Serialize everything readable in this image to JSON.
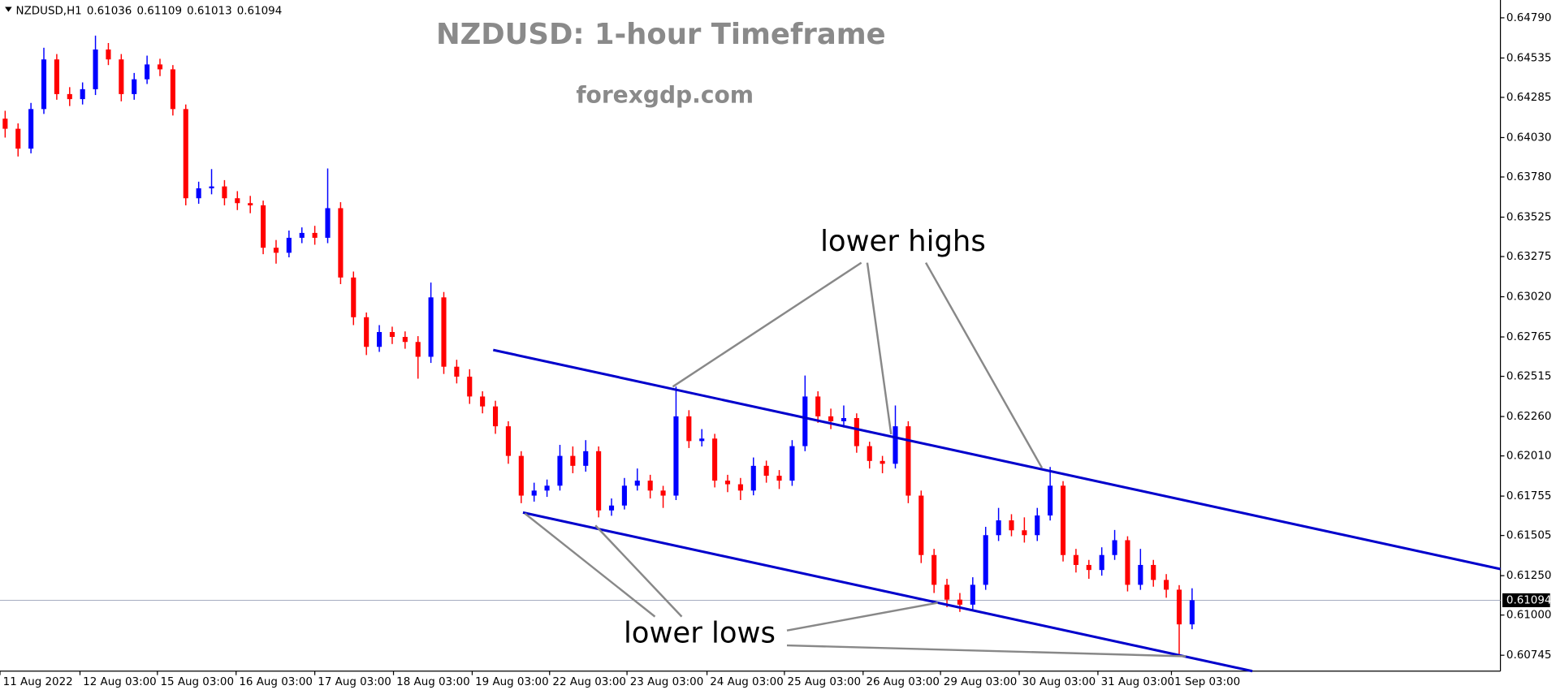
{
  "chart_data": {
    "type": "candlestick",
    "title": "NZDUSD: 1-hour Timeframe",
    "subtitle": "forexgdp.com",
    "header_symbol": "NZDUSD,H1",
    "header_values": [
      0.61036,
      0.61109,
      0.61013,
      0.61094
    ],
    "annotations": [
      "lower highs",
      "lower lows"
    ],
    "current_price": 0.61094,
    "up_color": "#0000ff",
    "down_color": "#ff0000",
    "xlim": [
      -0.4,
      115.9
    ],
    "xticks": [
      {
        "value": -0.4,
        "label": "11 Aug 2022"
      },
      {
        "value": 5.8,
        "label": "12 Aug 03:00"
      },
      {
        "value": 11.8,
        "label": "15 Aug 03:00"
      },
      {
        "value": 17.9,
        "label": "16 Aug 03:00"
      },
      {
        "value": 24,
        "label": "17 Aug 03:00"
      },
      {
        "value": 30.1,
        "label": "18 Aug 03:00"
      },
      {
        "value": 36.2,
        "label": "19 Aug 03:00"
      },
      {
        "value": 42.2,
        "label": "22 Aug 03:00"
      },
      {
        "value": 48.2,
        "label": "23 Aug 03:00"
      },
      {
        "value": 54.4,
        "label": "24 Aug 03:00"
      },
      {
        "value": 60.4,
        "label": "25 Aug 03:00"
      },
      {
        "value": 66.5,
        "label": "26 Aug 03:00"
      },
      {
        "value": 72.5,
        "label": "29 Aug 03:00"
      },
      {
        "value": 78.6,
        "label": "30 Aug 03:00"
      },
      {
        "value": 84.7,
        "label": "31 Aug 03:00"
      },
      {
        "value": 90.4,
        "label": "1 Sep 03:00"
      }
    ],
    "ylim": [
      0.60644,
      0.64903
    ],
    "yticks": [
      {
        "value": 0.6479,
        "label": "0.64790"
      },
      0.64535,
      0.64285,
      {
        "value": 0.6403,
        "label": "0.64030"
      },
      {
        "value": 0.6378,
        "label": "0.63780"
      },
      0.63525,
      0.63275,
      {
        "value": 0.6302,
        "label": "0.63020"
      },
      0.62765,
      0.62515,
      {
        "value": 0.6226,
        "label": "0.62260"
      },
      {
        "value": 0.6201,
        "label": "0.62010"
      },
      0.61755,
      0.61505,
      {
        "value": 0.6125,
        "label": "0.61250"
      },
      {
        "value": 0.61,
        "label": "0.61000"
      },
      0.60745
    ],
    "open": [
      0.6415,
      0.64086,
      0.6396,
      0.64211,
      0.64526,
      0.64306,
      0.64274,
      0.64337,
      0.64589,
      0.64526,
      0.64306,
      0.644,
      0.64494,
      0.64463,
      0.64211,
      0.63645,
      0.63708,
      0.6372,
      0.63645,
      0.63614,
      0.636,
      0.63331,
      0.63299,
      0.63394,
      0.63425,
      0.63394,
      0.63582,
      0.63142,
      0.6289,
      0.62702,
      0.62796,
      0.62765,
      0.62733,
      0.62639,
      0.63016,
      0.62576,
      0.62513,
      0.62387,
      0.62324,
      0.62198,
      0.6201,
      0.61758,
      0.6179,
      0.61821,
      0.6201,
      0.61947,
      0.6204,
      0.61664,
      0.61695,
      0.61821,
      0.61853,
      0.6179,
      0.61758,
      0.62261,
      0.62104,
      0.6212,
      0.61853,
      0.6183,
      0.6179,
      0.61947,
      0.61884,
      0.61853,
      0.62072,
      0.62387,
      0.62261,
      0.6223,
      0.6225,
      0.62072,
      0.61978,
      0.6196,
      0.62198,
      0.61758,
      0.61381,
      0.61192,
      0.61098,
      0.61066,
      0.61192,
      0.61507,
      0.61601,
      0.61538,
      0.61507,
      0.61632,
      0.61821,
      0.61381,
      0.61318,
      0.61286,
      0.61381,
      0.61475,
      0.61192,
      0.61318,
      0.61223,
      0.61161,
      0.60941
    ],
    "high": [
      0.642,
      0.6412,
      0.6425,
      0.646,
      0.6456,
      0.6435,
      0.6438,
      0.64677,
      0.6463,
      0.6456,
      0.6444,
      0.6455,
      0.6453,
      0.6449,
      0.6424,
      0.6375,
      0.6383,
      0.6376,
      0.6369,
      0.6366,
      0.6363,
      0.6338,
      0.6344,
      0.6346,
      0.6347,
      0.63834,
      0.6362,
      0.6318,
      0.6292,
      0.6284,
      0.6283,
      0.628,
      0.6277,
      0.6311,
      0.6305,
      0.6262,
      0.6256,
      0.6242,
      0.6236,
      0.6223,
      0.6204,
      0.6184,
      0.6186,
      0.6208,
      0.6207,
      0.6211,
      0.6207,
      0.6174,
      0.6187,
      0.6193,
      0.6189,
      0.6182,
      0.6245,
      0.623,
      0.6218,
      0.6215,
      0.6189,
      0.6187,
      0.62,
      0.6198,
      0.6192,
      0.6211,
      0.6252,
      0.6242,
      0.6231,
      0.6233,
      0.6228,
      0.621,
      0.6201,
      0.6233,
      0.6223,
      0.6179,
      0.6142,
      0.6123,
      0.6114,
      0.6124,
      0.6156,
      0.6168,
      0.6164,
      0.6162,
      0.6168,
      0.6194,
      0.6185,
      0.6142,
      0.6135,
      0.6143,
      0.6154,
      0.615,
      0.6142,
      0.6135,
      0.6126,
      0.6119,
      0.6117
    ],
    "low": [
      0.6403,
      0.6391,
      0.6393,
      0.6418,
      0.6427,
      0.6423,
      0.6424,
      0.643,
      0.6449,
      0.6426,
      0.6427,
      0.6437,
      0.6442,
      0.6417,
      0.636,
      0.6361,
      0.6367,
      0.636,
      0.6357,
      0.6355,
      0.6329,
      0.6323,
      0.6327,
      0.6336,
      0.6335,
      0.6336,
      0.631,
      0.6284,
      0.6265,
      0.6267,
      0.6272,
      0.6269,
      0.625,
      0.626,
      0.6253,
      0.6247,
      0.6234,
      0.6228,
      0.6215,
      0.6196,
      0.6171,
      0.6172,
      0.6175,
      0.6179,
      0.619,
      0.6191,
      0.6162,
      0.6163,
      0.6167,
      0.6179,
      0.6174,
      0.6168,
      0.6173,
      0.6206,
      0.6207,
      0.6181,
      0.6178,
      0.6173,
      0.6176,
      0.6184,
      0.618,
      0.6182,
      0.6204,
      0.6222,
      0.6218,
      0.6219,
      0.6203,
      0.6193,
      0.619,
      0.6193,
      0.6171,
      0.6133,
      0.6114,
      0.6105,
      0.6102,
      0.6103,
      0.6116,
      0.6147,
      0.615,
      0.6146,
      0.6147,
      0.616,
      0.6134,
      0.6127,
      0.6123,
      0.6125,
      0.6135,
      0.6115,
      0.6116,
      0.6118,
      0.6111,
      0.60752,
      0.6091
    ],
    "close": [
      0.64086,
      0.6396,
      0.64211,
      0.64526,
      0.64306,
      0.64274,
      0.64337,
      0.64589,
      0.64526,
      0.64306,
      0.644,
      0.64494,
      0.64463,
      0.64211,
      0.63645,
      0.63708,
      0.6372,
      0.63645,
      0.63614,
      0.636,
      0.63331,
      0.63299,
      0.63394,
      0.63425,
      0.63394,
      0.63582,
      0.63142,
      0.6289,
      0.62702,
      0.62796,
      0.62765,
      0.62733,
      0.62639,
      0.63016,
      0.62576,
      0.62513,
      0.62387,
      0.62324,
      0.62198,
      0.6201,
      0.61758,
      0.6179,
      0.61821,
      0.6201,
      0.61947,
      0.6204,
      0.61664,
      0.61695,
      0.61821,
      0.61853,
      0.6179,
      0.61758,
      0.62261,
      0.62104,
      0.6212,
      0.61853,
      0.6183,
      0.6179,
      0.61947,
      0.61884,
      0.61853,
      0.62072,
      0.62387,
      0.62261,
      0.6223,
      0.6225,
      0.62072,
      0.61978,
      0.6196,
      0.62198,
      0.61758,
      0.61381,
      0.61192,
      0.61098,
      0.61066,
      0.61192,
      0.61507,
      0.61601,
      0.61538,
      0.61507,
      0.61632,
      0.61821,
      0.61381,
      0.61318,
      0.61286,
      0.61381,
      0.61475,
      0.61192,
      0.61318,
      0.61223,
      0.61161,
      0.60941,
      0.61094
    ]
  }
}
